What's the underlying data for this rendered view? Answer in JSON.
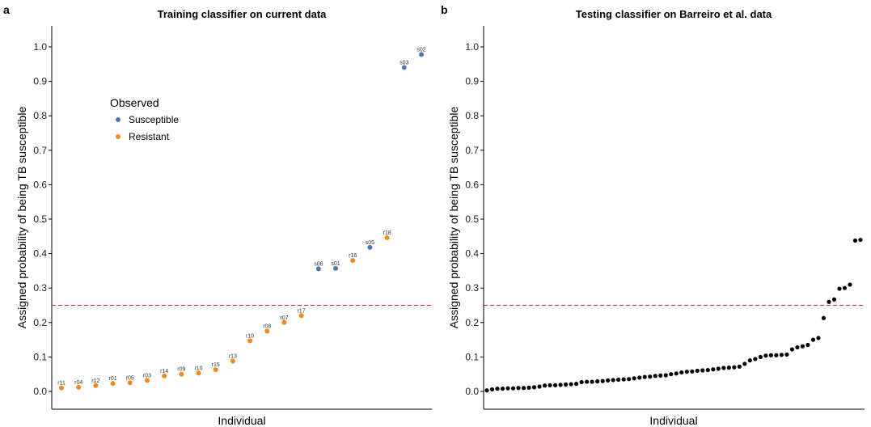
{
  "chart_data": [
    {
      "panel_label": "a",
      "type": "scatter",
      "title": "Training classifier on current data",
      "xlabel": "Individual",
      "ylabel": "Assigned probability of being TB susceptible",
      "ylim": [
        -0.05,
        1.06
      ],
      "yticks": [
        0.0,
        0.1,
        0.2,
        0.3,
        0.4,
        0.5,
        0.6,
        0.7,
        0.8,
        0.9,
        1.0
      ],
      "ytick_labels": [
        "0.0",
        "0.1",
        "0.2",
        "0.3",
        "0.4",
        "0.5",
        "0.6",
        "0.7",
        "0.8",
        "0.9",
        "1.0"
      ],
      "threshold": 0.25,
      "threshold_color": "#e41a1c",
      "grid": false,
      "legend": {
        "title": "Observed",
        "placement": "top-left",
        "entries": [
          {
            "label": "Susceptible",
            "color": "#4a7ab5"
          },
          {
            "label": "Resistant",
            "color": "#f28a1c"
          }
        ]
      },
      "points": [
        {
          "label": "r11",
          "y": 0.01,
          "group": "Resistant"
        },
        {
          "label": "r04",
          "y": 0.012,
          "group": "Resistant"
        },
        {
          "label": "r12",
          "y": 0.017,
          "group": "Resistant"
        },
        {
          "label": "r01",
          "y": 0.023,
          "group": "Resistant"
        },
        {
          "label": "r05",
          "y": 0.025,
          "group": "Resistant"
        },
        {
          "label": "r03",
          "y": 0.032,
          "group": "Resistant"
        },
        {
          "label": "r14",
          "y": 0.045,
          "group": "Resistant"
        },
        {
          "label": "r09",
          "y": 0.05,
          "group": "Resistant"
        },
        {
          "label": "r10",
          "y": 0.053,
          "group": "Resistant"
        },
        {
          "label": "r15",
          "y": 0.063,
          "group": "Resistant"
        },
        {
          "label": "r13",
          "y": 0.088,
          "group": "Resistant"
        },
        {
          "label": "r10",
          "y": 0.147,
          "group": "Resistant"
        },
        {
          "label": "r08",
          "y": 0.175,
          "group": "Resistant"
        },
        {
          "label": "r07",
          "y": 0.2,
          "group": "Resistant"
        },
        {
          "label": "r17",
          "y": 0.22,
          "group": "Resistant"
        },
        {
          "label": "s06",
          "y": 0.356,
          "group": "Susceptible"
        },
        {
          "label": "s01",
          "y": 0.357,
          "group": "Susceptible"
        },
        {
          "label": "r16",
          "y": 0.38,
          "group": "Resistant"
        },
        {
          "label": "s05",
          "y": 0.418,
          "group": "Susceptible"
        },
        {
          "label": "r18",
          "y": 0.446,
          "group": "Resistant"
        },
        {
          "label": "s03",
          "y": 0.94,
          "group": "Susceptible"
        },
        {
          "label": "s02",
          "y": 0.978,
          "group": "Susceptible"
        }
      ]
    },
    {
      "panel_label": "b",
      "type": "scatter",
      "title": "Testing classifier on Barreiro et al. data",
      "xlabel": "Individual",
      "ylabel": "Assigned probability of being TB susceptible",
      "ylim": [
        -0.05,
        1.06
      ],
      "yticks": [
        0.0,
        0.1,
        0.2,
        0.3,
        0.4,
        0.5,
        0.6,
        0.7,
        0.8,
        0.9,
        1.0
      ],
      "ytick_labels": [
        "0.0",
        "0.1",
        "0.2",
        "0.3",
        "0.4",
        "0.5",
        "0.6",
        "0.7",
        "0.8",
        "0.9",
        "1.0"
      ],
      "threshold": 0.25,
      "threshold_color": "#e41a1c",
      "grid": false,
      "point_color": "#000000",
      "values": [
        0.003,
        0.006,
        0.008,
        0.008,
        0.009,
        0.009,
        0.01,
        0.01,
        0.011,
        0.012,
        0.014,
        0.017,
        0.018,
        0.018,
        0.019,
        0.02,
        0.021,
        0.022,
        0.027,
        0.028,
        0.028,
        0.029,
        0.03,
        0.032,
        0.033,
        0.034,
        0.035,
        0.036,
        0.038,
        0.04,
        0.042,
        0.043,
        0.045,
        0.046,
        0.047,
        0.05,
        0.052,
        0.055,
        0.057,
        0.058,
        0.06,
        0.061,
        0.062,
        0.064,
        0.066,
        0.068,
        0.069,
        0.07,
        0.072,
        0.08,
        0.09,
        0.094,
        0.1,
        0.104,
        0.105,
        0.105,
        0.106,
        0.107,
        0.122,
        0.128,
        0.131,
        0.135,
        0.15,
        0.155,
        0.213,
        0.26,
        0.267,
        0.298,
        0.3,
        0.31,
        0.438,
        0.44
      ]
    }
  ]
}
